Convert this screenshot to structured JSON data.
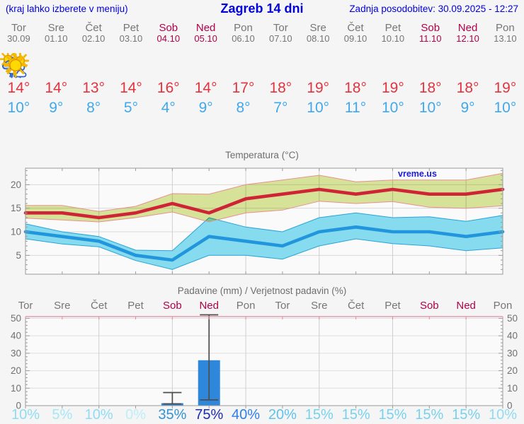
{
  "header": {
    "left_note": "(kraj lahko izberete v meniju)",
    "title": "Zagreb 14 dni",
    "updated": "Zadnja posodobitev: 30.09.2025 - 12:27"
  },
  "colors": {
    "header_blue": "#0000dd",
    "weekday_gray": "#767676",
    "weekend_crimson": "#b10049",
    "tmax_red": "#e1343f",
    "tmin_blue": "#41a8ea",
    "watermark_blue": "#1a1ae0"
  },
  "days": [
    {
      "name": "Tor",
      "date": "30.09",
      "weekend": false,
      "icon": "cloudy",
      "tmax": 14,
      "tmin": 10
    },
    {
      "name": "Sre",
      "date": "01.10",
      "weekend": false,
      "icon": "sun-clouds",
      "tmax": 14,
      "tmin": 9
    },
    {
      "name": "Čet",
      "date": "02.10",
      "weekend": false,
      "icon": "sun-clouds",
      "tmax": 13,
      "tmin": 8
    },
    {
      "name": "Pet",
      "date": "03.10",
      "weekend": false,
      "icon": "sunny",
      "tmax": 14,
      "tmin": 5
    },
    {
      "name": "Sob",
      "date": "04.10",
      "weekend": true,
      "icon": "rain",
      "tmax": 16,
      "tmin": 4
    },
    {
      "name": "Ned",
      "date": "05.10",
      "weekend": true,
      "icon": "sun-rain",
      "tmax": 14,
      "tmin": 9
    },
    {
      "name": "Pon",
      "date": "06.10",
      "weekend": false,
      "icon": "sun-clouds",
      "tmax": 17,
      "tmin": 8
    },
    {
      "name": "Tor",
      "date": "07.10",
      "weekend": false,
      "icon": "sun-small-cloud",
      "tmax": 18,
      "tmin": 7
    },
    {
      "name": "Sre",
      "date": "08.10",
      "weekend": false,
      "icon": "sunny",
      "tmax": 19,
      "tmin": 10
    },
    {
      "name": "Čet",
      "date": "09.10",
      "weekend": false,
      "icon": "sunny",
      "tmax": 18,
      "tmin": 11
    },
    {
      "name": "Pet",
      "date": "10.10",
      "weekend": false,
      "icon": "sunny",
      "tmax": 19,
      "tmin": 10
    },
    {
      "name": "Sob",
      "date": "11.10",
      "weekend": true,
      "icon": "sunny",
      "tmax": 18,
      "tmin": 10
    },
    {
      "name": "Ned",
      "date": "12.10",
      "weekend": true,
      "icon": "sunny",
      "tmax": 18,
      "tmin": 9
    },
    {
      "name": "Pon",
      "date": "13.10",
      "weekend": false,
      "icon": "sunny",
      "tmax": 19,
      "tmin": 10
    }
  ],
  "chart_data": [
    {
      "type": "line",
      "title": "Temperatura (°C)",
      "x_categories": [
        "Tor 30.09",
        "Sre 01.10",
        "Čet 02.10",
        "Pet 03.10",
        "Sob 04.10",
        "Ned 05.10",
        "Pon 06.10",
        "Tor 07.10",
        "Sre 08.10",
        "Čet 09.10",
        "Pet 10.10",
        "Sob 11.10",
        "Ned 12.10",
        "Pon 13.10"
      ],
      "ylim": [
        1,
        23.5
      ],
      "yticks": [
        5,
        10,
        15,
        20
      ],
      "grid": "on",
      "legend": "none",
      "watermark": "vreme.us",
      "bands": [
        {
          "name": "min temperatura razpon",
          "fill": "#86dbee",
          "stroke": "#2aa3d8",
          "upper": [
            11.7,
            10,
            9,
            6.1,
            6,
            13,
            11,
            10,
            13,
            14,
            13,
            13.2,
            12.2,
            13.5
          ],
          "lower": [
            8.5,
            7.4,
            6.8,
            3.9,
            2,
            5,
            5,
            4.2,
            7,
            8.5,
            7.5,
            7,
            6,
            6.6
          ]
        },
        {
          "name": "max temperatura razpon",
          "fill": "#dbe79b",
          "stroke": "#e89090",
          "blend": "multiply",
          "upper": [
            15.6,
            15.6,
            14.3,
            15.4,
            18.1,
            18,
            20,
            21,
            22,
            20.6,
            21,
            21,
            21,
            22.4
          ],
          "lower": [
            12.9,
            12.5,
            12.1,
            13,
            14.2,
            12.1,
            14,
            14.6,
            16.5,
            16,
            16.4,
            15.2,
            15,
            15.5
          ]
        }
      ],
      "series": [
        {
          "name": "min temperatura",
          "color": "#2196dd",
          "values": [
            10,
            9,
            8,
            5,
            4,
            9,
            8,
            7,
            10,
            11,
            10,
            10,
            9,
            10
          ]
        },
        {
          "name": "max temperatura",
          "color": "#cf2435",
          "values": [
            14,
            14,
            13,
            14,
            16,
            14,
            17,
            18,
            19,
            18,
            19,
            18,
            18,
            19
          ]
        }
      ]
    },
    {
      "type": "bar",
      "title": "Padavine (mm) / Verjetnost padavin (%)",
      "categories": [
        "Tor",
        "Sre",
        "Čet",
        "Pet",
        "Sob",
        "Ned",
        "Pon",
        "Tor",
        "Sre",
        "Čet",
        "Pet",
        "Sob",
        "Ned",
        "Pon"
      ],
      "weekend_flags": [
        false,
        false,
        false,
        false,
        true,
        true,
        false,
        false,
        false,
        false,
        false,
        true,
        true,
        false
      ],
      "ylim": [
        0,
        51
      ],
      "yticks": [
        0,
        10,
        20,
        30,
        40,
        50
      ],
      "grid": "on",
      "bar_color": "#2f87dc",
      "whisker_color": "#4d4d4d",
      "values_mm": [
        0,
        0,
        0,
        0,
        1.4,
        26,
        0,
        0,
        0,
        0,
        0,
        0,
        0,
        0
      ],
      "whiskers": [
        null,
        null,
        null,
        null,
        {
          "min": 1,
          "max": 7.5
        },
        {
          "min": 3.3,
          "max": 52
        },
        null,
        null,
        null,
        null,
        null,
        null,
        null,
        null
      ],
      "probabilities_pct": [
        10,
        5,
        10,
        0,
        35,
        75,
        40,
        20,
        15,
        15,
        15,
        15,
        15,
        10
      ],
      "prob_colors": [
        "#8fdcf2",
        "#a6e7f7",
        "#8fdcf2",
        "#bceffa",
        "#3094d4",
        "#1a2fb0",
        "#2e7fe6",
        "#5ec2ea",
        "#77d2ee",
        "#77d2ee",
        "#77d2ee",
        "#77d2ee",
        "#77d2ee",
        "#8fdcf2"
      ]
    }
  ]
}
